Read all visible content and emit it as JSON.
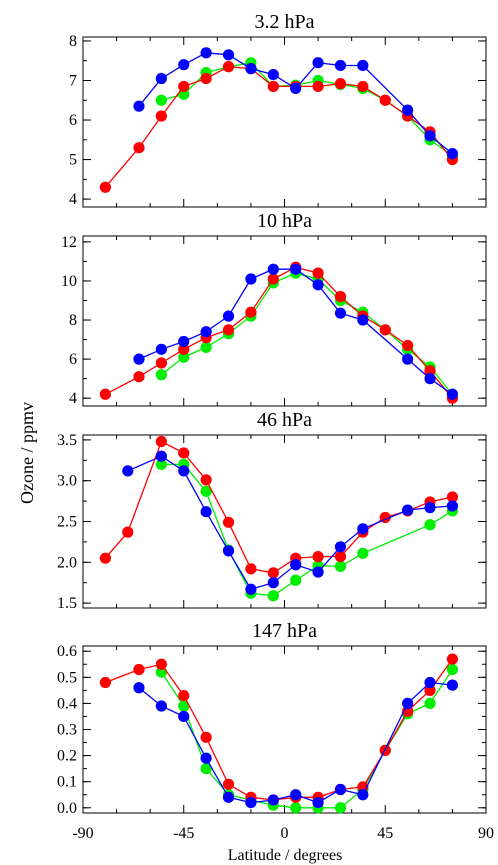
{
  "chart_data": {
    "type": "line",
    "ylabel": "Ozone / ppmv",
    "xlabel": "Latitude / degrees",
    "xlim": [
      -90,
      90
    ],
    "xticks": [
      -90,
      -45,
      0,
      45,
      90
    ],
    "series_colors": [
      "#00ee00",
      "#ff0000",
      "#0000ff"
    ],
    "panels": [
      {
        "title": "3.2 hPa",
        "ylim": [
          3.8,
          8.1
        ],
        "yticks": [
          "4",
          "5",
          "6",
          "7",
          "8"
        ],
        "series": [
          {
            "color": "#00ee00",
            "x": [
              -55,
              -45,
              -35,
              -25,
              -15,
              -5,
              5,
              15,
              25,
              35,
              45,
              55,
              65,
              75
            ],
            "y": [
              6.5,
              6.65,
              7.2,
              7.35,
              7.45,
              6.85,
              6.88,
              7.0,
              6.9,
              6.8,
              6.5,
              6.1,
              5.5,
              5.1
            ]
          },
          {
            "color": "#ff0000",
            "x": [
              -80,
              -65,
              -55,
              -45,
              -35,
              -25,
              -15,
              -5,
              5,
              15,
              25,
              35,
              45,
              55,
              65,
              75
            ],
            "y": [
              4.3,
              5.3,
              6.1,
              6.85,
              7.05,
              7.35,
              7.3,
              6.85,
              6.85,
              6.85,
              6.92,
              6.85,
              6.5,
              6.1,
              5.7,
              5.0
            ]
          },
          {
            "color": "#0000ff",
            "x": [
              -65,
              -55,
              -45,
              -35,
              -25,
              -15,
              -5,
              5,
              15,
              25,
              35,
              55,
              65,
              75
            ],
            "y": [
              6.35,
              7.05,
              7.4,
              7.7,
              7.65,
              7.3,
              7.15,
              6.8,
              7.45,
              7.38,
              7.38,
              6.25,
              5.6,
              5.15
            ]
          }
        ]
      },
      {
        "title": "10 hPa",
        "ylim": [
          3.6,
          12.3
        ],
        "yticks": [
          "4",
          "6",
          "8",
          "10",
          "12"
        ],
        "series": [
          {
            "color": "#00ee00",
            "x": [
              -55,
              -45,
              -35,
              -25,
              -15,
              -5,
              5,
              15,
              25,
              35,
              45,
              55,
              65,
              75
            ],
            "y": [
              5.2,
              6.1,
              6.6,
              7.3,
              8.2,
              9.9,
              10.4,
              10.1,
              9.0,
              8.4,
              7.5,
              6.5,
              5.6,
              4.2
            ]
          },
          {
            "color": "#ff0000",
            "x": [
              -80,
              -65,
              -55,
              -45,
              -35,
              -25,
              -15,
              -5,
              5,
              15,
              25,
              35,
              45,
              55,
              65,
              75
            ],
            "y": [
              4.2,
              5.1,
              5.8,
              6.5,
              7.1,
              7.5,
              8.4,
              10.1,
              10.7,
              10.4,
              9.2,
              8.2,
              7.5,
              6.7,
              5.4,
              4.0
            ]
          },
          {
            "color": "#0000ff",
            "x": [
              -65,
              -55,
              -45,
              -35,
              -25,
              -15,
              -5,
              5,
              15,
              25,
              35,
              55,
              65,
              75
            ],
            "y": [
              6.0,
              6.5,
              6.9,
              7.4,
              8.2,
              10.1,
              10.6,
              10.6,
              9.8,
              8.35,
              8.0,
              6.0,
              5.0,
              4.2
            ]
          }
        ]
      },
      {
        "title": "46 hPa",
        "ylim": [
          1.44,
          3.56
        ],
        "yticks": [
          "1.5",
          "2.0",
          "2.5",
          "3.0",
          "3.5"
        ],
        "series": [
          {
            "color": "#00ee00",
            "x": [
              -55,
              -45,
              -35,
              -25,
              -15,
              -5,
              5,
              15,
              25,
              35,
              65,
              75
            ],
            "y": [
              3.2,
              3.2,
              2.87,
              2.15,
              1.62,
              1.59,
              1.78,
              1.96,
              1.95,
              2.11,
              2.46,
              2.63
            ]
          },
          {
            "color": "#ff0000",
            "x": [
              -80,
              -70,
              -55,
              -45,
              -35,
              -25,
              -15,
              -5,
              5,
              15,
              25,
              35,
              45,
              55,
              65,
              75
            ],
            "y": [
              2.05,
              2.37,
              3.48,
              3.34,
              3.01,
              2.49,
              1.92,
              1.87,
              2.05,
              2.07,
              2.07,
              2.37,
              2.55,
              2.63,
              2.74,
              2.8
            ]
          },
          {
            "color": "#0000ff",
            "x": [
              -70,
              -55,
              -45,
              -35,
              -25,
              -15,
              -5,
              5,
              15,
              25,
              35,
              55,
              65,
              75
            ],
            "y": [
              3.12,
              3.3,
              3.12,
              2.62,
              2.14,
              1.67,
              1.75,
              1.97,
              1.88,
              2.19,
              2.41,
              2.64,
              2.67,
              2.69
            ]
          }
        ]
      },
      {
        "title": "147 hPa",
        "ylim": [
          -0.02,
          0.62
        ],
        "yticks": [
          "0.0",
          "0.1",
          "0.2",
          "0.3",
          "0.4",
          "0.5",
          "0.6"
        ],
        "series": [
          {
            "color": "#00ee00",
            "x": [
              -55,
              -45,
              -35,
              -25,
              -15,
              -5,
              5,
              15,
              25,
              35,
              45,
              55,
              65,
              75
            ],
            "y": [
              0.52,
              0.39,
              0.15,
              0.05,
              0.03,
              0.01,
              0.0,
              0.0,
              0.0,
              0.07,
              0.22,
              0.36,
              0.4,
              0.53
            ]
          },
          {
            "color": "#ff0000",
            "x": [
              -80,
              -65,
              -55,
              -45,
              -35,
              -25,
              -15,
              -5,
              5,
              15,
              25,
              35,
              45,
              55,
              65,
              75
            ],
            "y": [
              0.48,
              0.53,
              0.55,
              0.43,
              0.27,
              0.09,
              0.04,
              0.03,
              0.04,
              0.04,
              0.07,
              0.08,
              0.22,
              0.37,
              0.45,
              0.57
            ]
          },
          {
            "color": "#0000ff",
            "x": [
              -65,
              -55,
              -45,
              -35,
              -25,
              -15,
              -5,
              5,
              15,
              25,
              35,
              55,
              65,
              75
            ],
            "y": [
              0.46,
              0.39,
              0.35,
              0.19,
              0.04,
              0.02,
              0.03,
              0.05,
              0.02,
              0.07,
              0.05,
              0.4,
              0.48,
              0.47
            ]
          }
        ]
      }
    ]
  }
}
